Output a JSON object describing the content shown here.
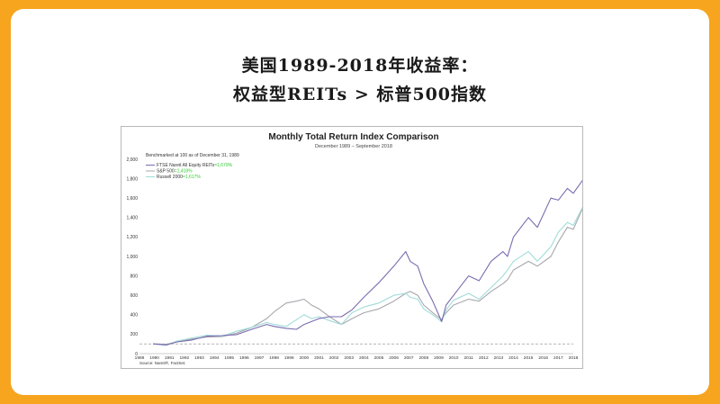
{
  "page_title": {
    "line1": "美国1989-2018年收益率：",
    "line2": "权益型REITs > 标普500指数"
  },
  "colors": {
    "background": "#f7a51f",
    "card": "#ffffff",
    "series_reits": "#7a6bb0",
    "series_sp500": "#a7a7ae",
    "series_russell": "#9fdcd8",
    "legend_value": "#35c935",
    "baseline": "#8a8a8a"
  },
  "chart_data": {
    "type": "line",
    "title": "Monthly Total Return Index Comparison",
    "subtitle": "December 1989 – September 2018",
    "annotation": "Benchmarked at 100 as of December 31, 1989",
    "source": "Source: Nareit®, FactSet.",
    "xlabel": "",
    "ylabel": "",
    "xlim": [
      1989,
      2018
    ],
    "ylim": [
      0,
      2000
    ],
    "x_ticks": [
      "1989",
      "1990",
      "1991",
      "1992",
      "1993",
      "1994",
      "1995",
      "1996",
      "1997",
      "1998",
      "1999",
      "2000",
      "2001",
      "2002",
      "2003",
      "2004",
      "2005",
      "2006",
      "2007",
      "2008",
      "2009",
      "2010",
      "2011",
      "2012",
      "2013",
      "2014",
      "2015",
      "2016",
      "2017",
      "2018"
    ],
    "y_ticks": [
      "0",
      "200",
      "400",
      "600",
      "800",
      "1,000",
      "1,200",
      "1,400",
      "1,600",
      "1,800",
      "2,000"
    ],
    "y_tick_values": [
      0,
      200,
      400,
      600,
      800,
      1000,
      1200,
      1400,
      1600,
      1800,
      2000
    ],
    "grid": false,
    "baseline_value": 100,
    "legend_position": "top-left",
    "x": [
      1989.9,
      1990.8,
      1991.5,
      1992.5,
      1993.5,
      1994.5,
      1995.5,
      1996.5,
      1997.5,
      1998.0,
      1998.8,
      1999.5,
      2000.0,
      2000.5,
      2001.0,
      2001.7,
      2002.5,
      2003.2,
      2004.0,
      2005.0,
      2006.0,
      2006.8,
      2007.1,
      2007.6,
      2008.0,
      2008.6,
      2009.2,
      2009.5,
      2010.0,
      2011.0,
      2011.7,
      2012.5,
      2013.3,
      2013.6,
      2014.0,
      2015.0,
      2015.6,
      2016.5,
      2017.0,
      2017.6,
      2018.0,
      2018.7
    ],
    "series": [
      {
        "name": "FTSE Nareit All Equity REITs",
        "legend_value": "=1,679%",
        "values": [
          100,
          90,
          120,
          140,
          180,
          185,
          195,
          250,
          300,
          280,
          260,
          250,
          300,
          330,
          360,
          380,
          380,
          450,
          580,
          730,
          900,
          1050,
          950,
          900,
          720,
          540,
          330,
          500,
          600,
          800,
          750,
          950,
          1050,
          1000,
          1200,
          1400,
          1300,
          1600,
          1580,
          1700,
          1650,
          1800
        ]
      },
      {
        "name": "S&P 500",
        "legend_value": "=1,418%",
        "values": [
          100,
          95,
          120,
          150,
          170,
          175,
          210,
          270,
          360,
          430,
          520,
          540,
          560,
          500,
          460,
          380,
          300,
          360,
          420,
          460,
          540,
          620,
          640,
          600,
          500,
          420,
          350,
          420,
          500,
          560,
          540,
          640,
          720,
          760,
          860,
          950,
          900,
          1000,
          1150,
          1300,
          1280,
          1520
        ]
      },
      {
        "name": "Russell 2000",
        "legend_value": "=1,617%",
        "values": [
          100,
          85,
          130,
          160,
          190,
          180,
          230,
          270,
          320,
          300,
          280,
          350,
          400,
          360,
          380,
          340,
          300,
          420,
          480,
          520,
          600,
          620,
          580,
          560,
          460,
          400,
          330,
          450,
          550,
          620,
          560,
          680,
          800,
          860,
          950,
          1050,
          950,
          1100,
          1250,
          1350,
          1320,
          1530
        ]
      }
    ]
  }
}
